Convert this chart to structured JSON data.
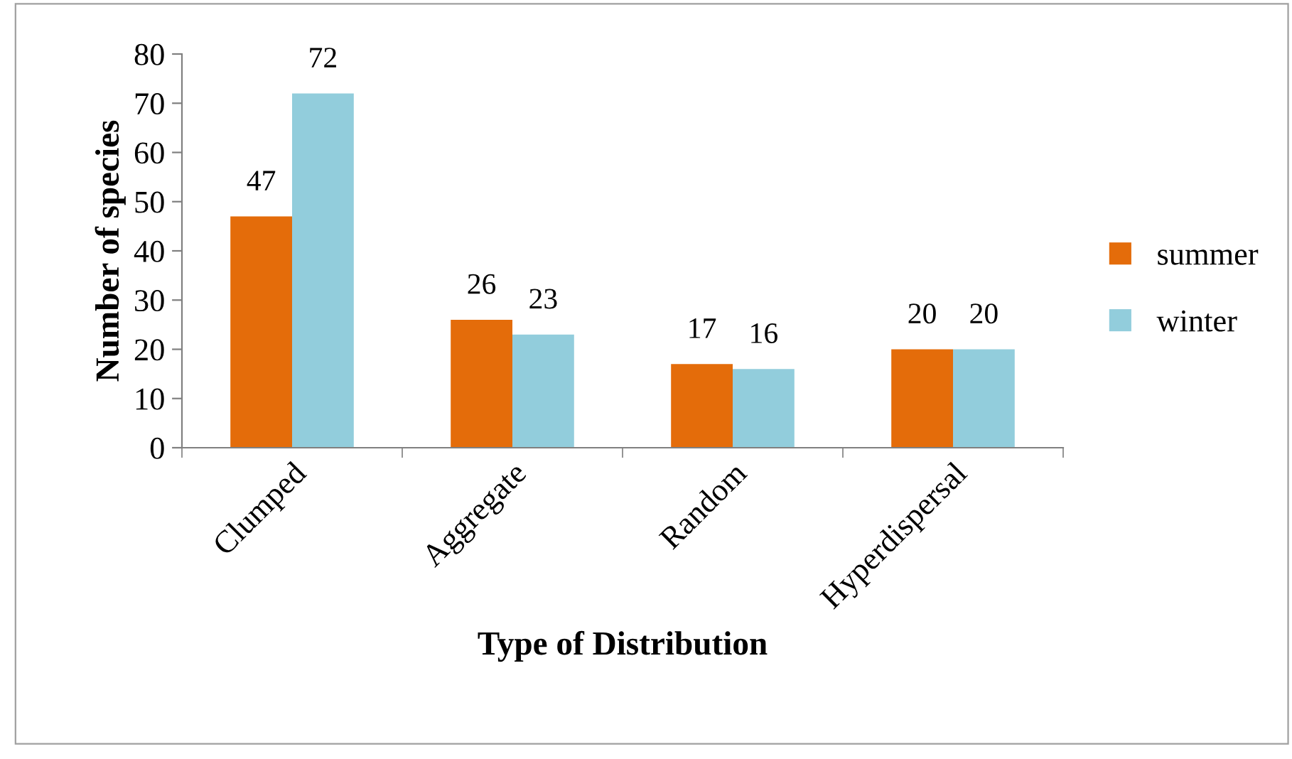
{
  "chart_data": {
    "type": "bar",
    "xlabel": "Type of Distribution",
    "ylabel": "Number of species",
    "categories": [
      "Clumped",
      "Aggregate",
      "Random",
      "Hyperdispersal"
    ],
    "series": [
      {
        "name": "summer",
        "color": "#e46c0a",
        "values": [
          47,
          26,
          17,
          20
        ]
      },
      {
        "name": "winter",
        "color": "#92cddc",
        "values": [
          72,
          23,
          16,
          20
        ]
      }
    ],
    "ylim": [
      0,
      80
    ],
    "yticks": [
      0,
      10,
      20,
      30,
      40,
      50,
      60,
      70,
      80
    ],
    "grid": false,
    "legend": "right",
    "data_labels": true
  }
}
